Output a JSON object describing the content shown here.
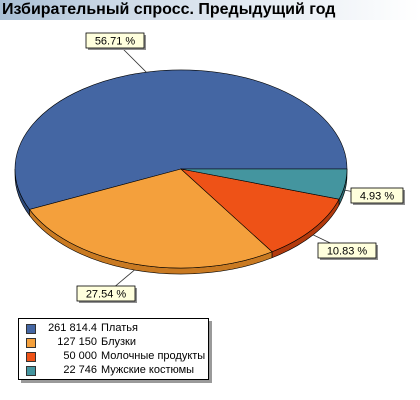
{
  "chart_data": {
    "type": "pie",
    "title": "Избирательный спросс. Предыдущий год",
    "slices": [
      {
        "name": "Платья",
        "value": 261814.4,
        "value_label": "261 814.4",
        "percent_label": "56.71 %",
        "color": "#4466a3",
        "side_color": "#2e4a7a"
      },
      {
        "name": "Блузки",
        "value": 127150,
        "value_label": "127 150",
        "percent_label": "27.54 %",
        "color": "#f4a03c",
        "side_color": "#c97a22"
      },
      {
        "name": "Молочные продукты",
        "value": 50000,
        "value_label": "50 000",
        "percent_label": "10.83 %",
        "color": "#ee5217",
        "side_color": "#b23a0d"
      },
      {
        "name": "Мужские костюмы",
        "value": 22746,
        "value_label": "22 746",
        "percent_label": "4.93 %",
        "color": "#44959f",
        "side_color": "#2e6c74"
      }
    ],
    "legend_position": "bottom-left"
  }
}
